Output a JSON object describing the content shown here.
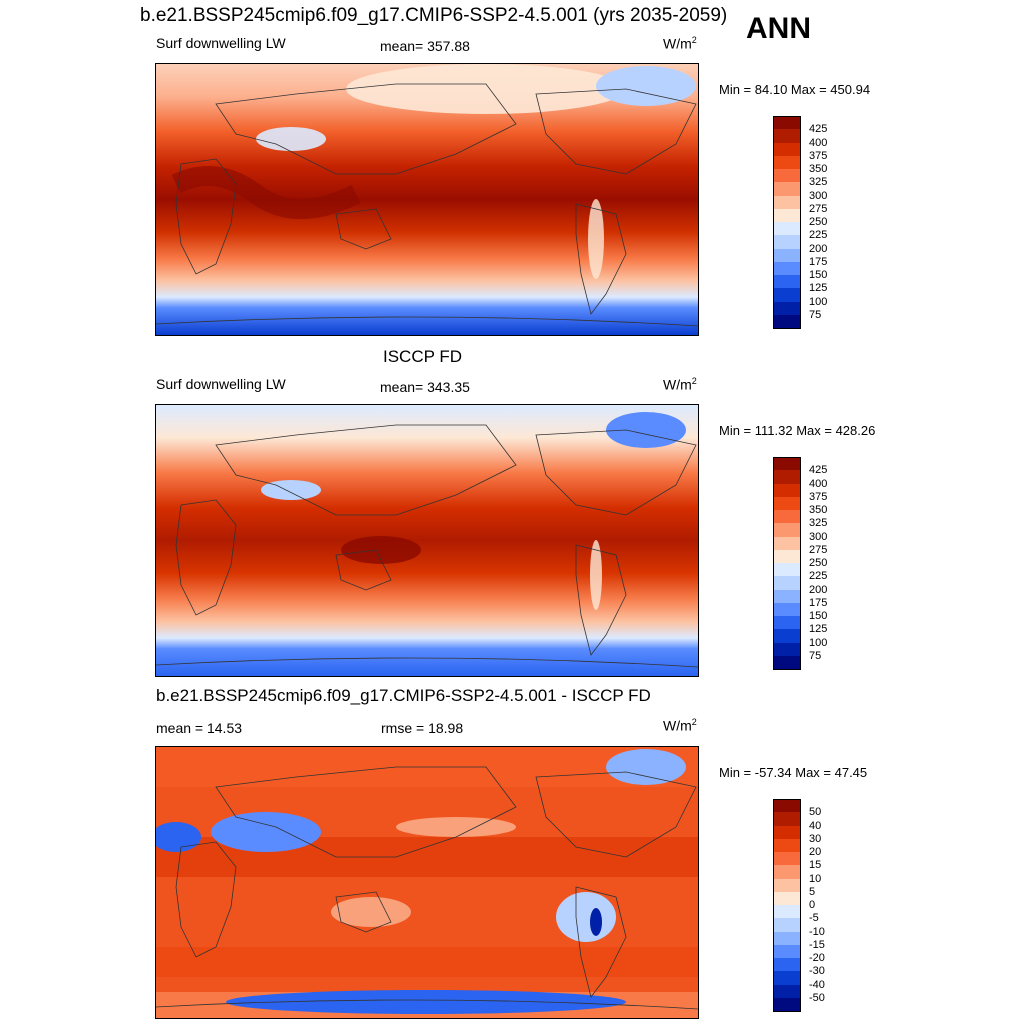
{
  "header": {
    "title": "b.e21.BSSP245cmip6.f09_g17.CMIP6-SSP2-4.5.001 (yrs 2035-2059)",
    "season": "ANN"
  },
  "panels": [
    {
      "title": "",
      "left_label": "Surf downwelling LW",
      "center_label": "mean= 357.88",
      "units": "W/m",
      "units_sup": "2",
      "minmax": "Min =  84.10 Max = 450.94",
      "colorbar": {
        "labels": [
          "425",
          "400",
          "375",
          "350",
          "325",
          "300",
          "275",
          "250",
          "225",
          "200",
          "175",
          "150",
          "125",
          "100",
          "75"
        ],
        "colors": [
          "#8b0a00",
          "#b01c00",
          "#d42e00",
          "#ec4a12",
          "#f86a3c",
          "#fc9870",
          "#fcc2a2",
          "#fde8d6",
          "#dceaff",
          "#b8d2ff",
          "#8ab2ff",
          "#5a8cff",
          "#2a64f0",
          "#0a3ed0",
          "#0020a8",
          "#000a80"
        ]
      }
    },
    {
      "title": "ISCCP FD",
      "left_label": "Surf downwelling LW",
      "center_label": "mean= 343.35",
      "units": "W/m",
      "units_sup": "2",
      "minmax": "Min = 111.32 Max = 428.26",
      "colorbar": {
        "labels": [
          "425",
          "400",
          "375",
          "350",
          "325",
          "300",
          "275",
          "250",
          "225",
          "200",
          "175",
          "150",
          "125",
          "100",
          "75"
        ],
        "colors": [
          "#8b0a00",
          "#b01c00",
          "#d42e00",
          "#ec4a12",
          "#f86a3c",
          "#fc9870",
          "#fcc2a2",
          "#fde8d6",
          "#dceaff",
          "#b8d2ff",
          "#8ab2ff",
          "#5a8cff",
          "#2a64f0",
          "#0a3ed0",
          "#0020a8",
          "#000a80"
        ]
      }
    },
    {
      "title": "b.e21.BSSP245cmip6.f09_g17.CMIP6-SSP2-4.5.001 - ISCCP FD",
      "left_label": "mean =  14.53",
      "center_label": "rmse =  18.98",
      "units": "W/m",
      "units_sup": "2",
      "minmax": "Min = -57.34 Max =  47.45",
      "colorbar": {
        "labels": [
          "50",
          "40",
          "30",
          "20",
          "15",
          "10",
          "5",
          "0",
          "-5",
          "-10",
          "-15",
          "-20",
          "-30",
          "-40",
          "-50"
        ],
        "colors": [
          "#8b0a00",
          "#b01c00",
          "#d42e00",
          "#ec4a12",
          "#f86a3c",
          "#fc9870",
          "#fcc2a2",
          "#fde8d6",
          "#dceaff",
          "#b8d2ff",
          "#8ab2ff",
          "#5a8cff",
          "#2a64f0",
          "#0a3ed0",
          "#0020a8",
          "#000a80"
        ]
      }
    }
  ]
}
